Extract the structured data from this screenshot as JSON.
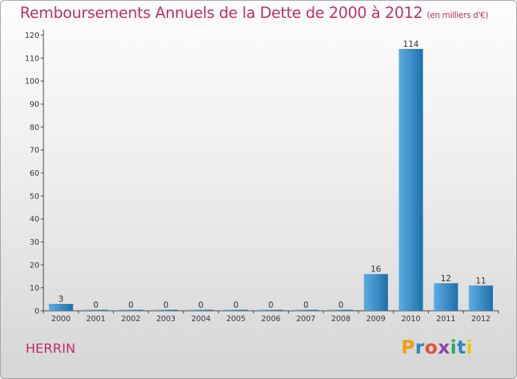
{
  "header": {
    "title": "Remboursements Annuels de la Dette de 2000 à 2012",
    "subtitle": "(en milliers d'€)"
  },
  "footer": {
    "commune": "HERRIN",
    "brand": "Proxiti",
    "brand_letters": [
      "P",
      "r",
      "o",
      "x",
      "i",
      "t",
      "i"
    ],
    "brand_colors": [
      "#f39c12",
      "#2e86c1",
      "#e74c3c",
      "#8e44ad",
      "#27ae60",
      "#2e86c1",
      "#f1c40f"
    ]
  },
  "colors": {
    "title": "#c0306a",
    "bar_light": "#5dade2",
    "bar_dark": "#1f6fae"
  },
  "chart_data": {
    "type": "bar",
    "title": "Remboursements Annuels de la Dette de 2000 à 2012",
    "xlabel": "",
    "ylabel": "",
    "unit": "en milliers d'€",
    "categories": [
      "2000",
      "2001",
      "2002",
      "2003",
      "2004",
      "2005",
      "2006",
      "2007",
      "2008",
      "2009",
      "2010",
      "2011",
      "2012"
    ],
    "values": [
      3,
      0,
      0,
      0,
      0,
      0,
      0,
      0,
      0,
      16,
      114,
      12,
      11
    ],
    "data_labels": [
      "3",
      "0",
      "0",
      "0",
      "0",
      "0",
      "0",
      "0",
      "0",
      "16",
      "114",
      "12",
      "11"
    ],
    "ylim": [
      0,
      120
    ],
    "yticks": [
      0,
      10,
      20,
      30,
      40,
      50,
      60,
      70,
      80,
      90,
      100,
      110,
      120
    ],
    "grid": false
  }
}
